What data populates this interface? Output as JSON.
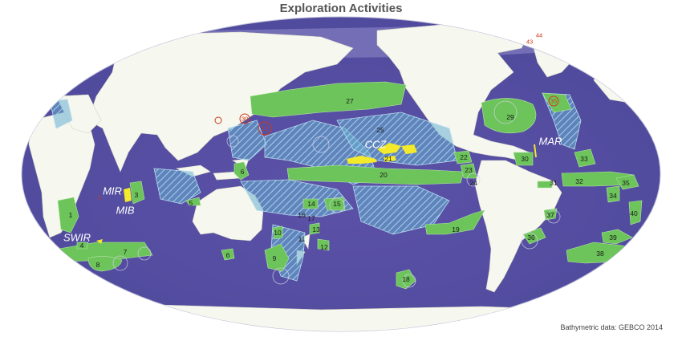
{
  "title": "Exploration Activities",
  "credit": "Bathymetric data: GEBCO 2014",
  "colors": {
    "ocean": "#5b55a8",
    "land": "#f6f7ee",
    "exploration_area": "#6cc45a",
    "hatched_area": "#6aaed0",
    "nodule_claims": "#f2ea2a",
    "marker": "#cc3a1a"
  },
  "region_labels": [
    "MIR",
    "MIB",
    "SWIR",
    "CCZ",
    "MAR"
  ],
  "area_numbers": [
    "1",
    "3",
    "4",
    "5",
    "6",
    "7",
    "8",
    "9",
    "10",
    "11",
    "12",
    "13",
    "14",
    "15",
    "16",
    "17",
    "18",
    "19",
    "20",
    "21",
    "22",
    "23",
    "24",
    "25",
    "26",
    "27",
    "29",
    "30",
    "31",
    "32",
    "33",
    "34",
    "35",
    "36",
    "37",
    "38",
    "39",
    "40"
  ],
  "marker_numbers": [
    "2",
    "12",
    "30",
    "35",
    "43",
    "44"
  ]
}
